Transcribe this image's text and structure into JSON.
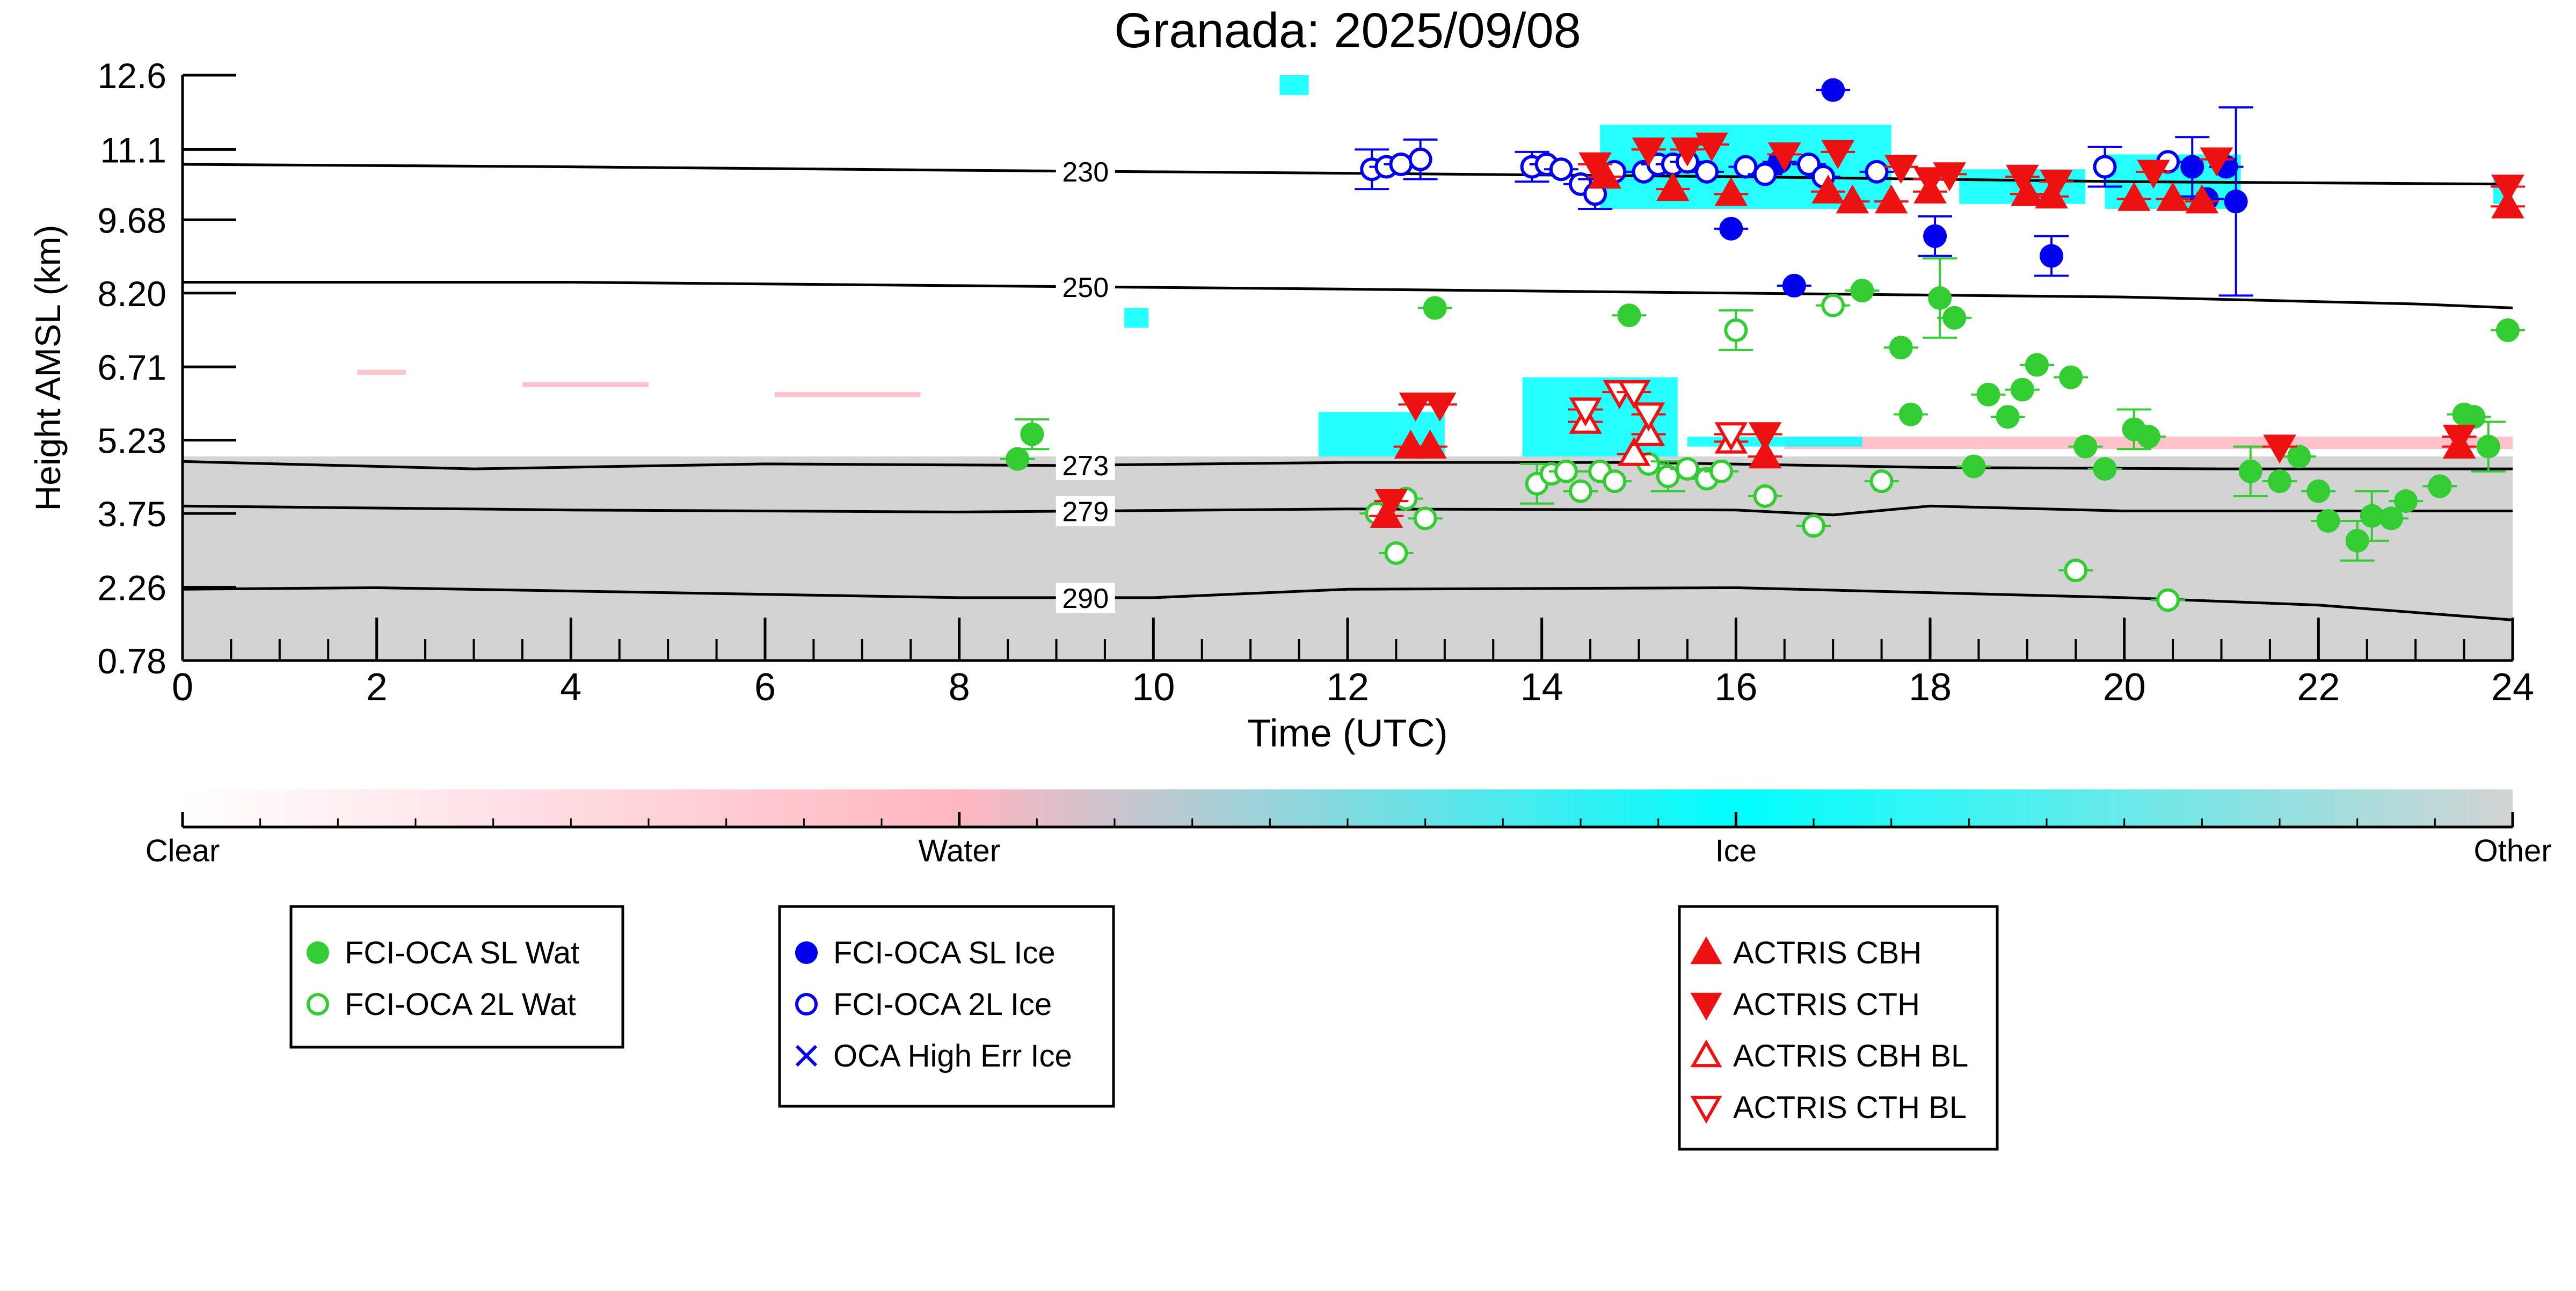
{
  "chart_data": {
    "type": "scatter",
    "title": "Granada: 2025/09/08",
    "xlabel": "Time (UTC)",
    "ylabel": "Height AMSL (km)",
    "xlim": [
      0,
      24
    ],
    "ylim": [
      0.78,
      12.6
    ],
    "x_ticks": [
      "0",
      "2",
      "4",
      "6",
      "8",
      "10",
      "12",
      "14",
      "16",
      "18",
      "20",
      "22",
      "24"
    ],
    "y_ticks": [
      "0.78",
      "2.26",
      "3.75",
      "5.23",
      "6.71",
      "8.20",
      "9.68",
      "11.1",
      "12.6"
    ],
    "isotherms": [
      {
        "label": "230",
        "x": [
          0,
          4,
          8,
          12,
          16,
          20,
          24
        ],
        "y": [
          10.8,
          10.75,
          10.68,
          10.62,
          10.55,
          10.45,
          10.4
        ]
      },
      {
        "label": "250",
        "x": [
          0,
          4,
          8,
          12,
          16,
          20,
          23,
          24
        ],
        "y": [
          8.42,
          8.42,
          8.35,
          8.28,
          8.2,
          8.12,
          7.98,
          7.9
        ]
      },
      {
        "label": "273",
        "x": [
          0,
          3,
          6,
          9,
          12,
          15,
          18,
          21,
          24
        ],
        "y": [
          4.8,
          4.65,
          4.75,
          4.72,
          4.78,
          4.78,
          4.68,
          4.65,
          4.65
        ]
      },
      {
        "label": "279",
        "x": [
          0,
          4,
          8,
          12,
          16,
          17,
          18,
          20,
          24
        ],
        "y": [
          3.9,
          3.82,
          3.78,
          3.84,
          3.82,
          3.72,
          3.9,
          3.8,
          3.8
        ]
      },
      {
        "label": "290",
        "x": [
          0,
          2,
          8,
          10,
          12,
          16,
          20,
          22,
          24
        ],
        "y": [
          2.22,
          2.25,
          2.05,
          2.05,
          2.22,
          2.25,
          2.05,
          1.9,
          1.6
        ]
      }
    ],
    "isotherm_label_x": 9.3,
    "background_fields": [
      {
        "class": "Other",
        "x0": 0,
        "x1": 24,
        "y0": 0.78,
        "y1": 4.9
      },
      {
        "class": "Water",
        "x0": 1.8,
        "x1": 2.3,
        "y0": 6.55,
        "y1": 6.65
      },
      {
        "class": "Water",
        "x0": 3.5,
        "x1": 4.8,
        "y0": 6.3,
        "y1": 6.4
      },
      {
        "class": "Water",
        "x0": 6.1,
        "x1": 7.6,
        "y0": 6.1,
        "y1": 6.2
      },
      {
        "class": "Water",
        "x0": 16.5,
        "x1": 24,
        "y0": 5.05,
        "y1": 5.3
      },
      {
        "class": "Ice",
        "x0": 11.3,
        "x1": 11.6,
        "y0": 12.2,
        "y1": 12.6
      },
      {
        "class": "Ice",
        "x0": 9.7,
        "x1": 9.95,
        "y0": 7.5,
        "y1": 7.9
      },
      {
        "class": "Ice",
        "x0": 11.7,
        "x1": 13.0,
        "y0": 4.9,
        "y1": 5.8
      },
      {
        "class": "Ice",
        "x0": 13.8,
        "x1": 15.4,
        "y0": 4.9,
        "y1": 6.5
      },
      {
        "class": "Ice",
        "x0": 15.5,
        "x1": 17.3,
        "y0": 5.1,
        "y1": 5.3
      },
      {
        "class": "Ice",
        "x0": 14.6,
        "x1": 17.6,
        "y0": 9.9,
        "y1": 11.6
      },
      {
        "class": "Ice",
        "x0": 19.8,
        "x1": 21.2,
        "y0": 9.9,
        "y1": 11.0
      },
      {
        "class": "Ice",
        "x0": 23.8,
        "x1": 24,
        "y0": 10.0,
        "y1": 10.5
      },
      {
        "class": "Ice",
        "x0": 18.3,
        "x1": 19.6,
        "y0": 10.0,
        "y1": 10.7
      }
    ],
    "series": [
      {
        "name": "FCI-OCA SL Wat",
        "marker": "circle",
        "filled": true,
        "color": "#33cc33",
        "points": [
          {
            "x": 8.6,
            "y": 4.85
          },
          {
            "x": 8.75,
            "y": 5.35,
            "err": 0.3
          },
          {
            "x": 12.9,
            "y": 7.9
          },
          {
            "x": 14.9,
            "y": 7.75
          },
          {
            "x": 17.3,
            "y": 8.25
          },
          {
            "x": 17.7,
            "y": 7.1
          },
          {
            "x": 17.8,
            "y": 5.75
          },
          {
            "x": 18.1,
            "y": 8.1,
            "err": 0.8
          },
          {
            "x": 18.25,
            "y": 7.7
          },
          {
            "x": 18.45,
            "y": 4.7
          },
          {
            "x": 18.6,
            "y": 6.15
          },
          {
            "x": 18.8,
            "y": 5.7
          },
          {
            "x": 18.95,
            "y": 6.25
          },
          {
            "x": 19.1,
            "y": 6.75
          },
          {
            "x": 19.45,
            "y": 6.5
          },
          {
            "x": 19.6,
            "y": 5.1
          },
          {
            "x": 19.8,
            "y": 4.65
          },
          {
            "x": 20.1,
            "y": 5.45,
            "err": 0.4
          },
          {
            "x": 20.25,
            "y": 5.3
          },
          {
            "x": 21.3,
            "y": 4.6,
            "err": 0.5
          },
          {
            "x": 21.6,
            "y": 4.4
          },
          {
            "x": 21.8,
            "y": 4.9
          },
          {
            "x": 22.0,
            "y": 4.2
          },
          {
            "x": 22.1,
            "y": 3.6
          },
          {
            "x": 22.4,
            "y": 3.2,
            "err": 0.4
          },
          {
            "x": 22.55,
            "y": 3.7,
            "err": 0.5
          },
          {
            "x": 22.75,
            "y": 3.65
          },
          {
            "x": 22.9,
            "y": 4.0
          },
          {
            "x": 23.25,
            "y": 4.3
          },
          {
            "x": 23.5,
            "y": 5.75
          },
          {
            "x": 23.6,
            "y": 5.7
          },
          {
            "x": 23.75,
            "y": 5.1,
            "err": 0.5
          },
          {
            "x": 23.95,
            "y": 7.45
          }
        ]
      },
      {
        "name": "FCI-OCA 2L Wat",
        "marker": "circle",
        "filled": false,
        "color": "#33cc33",
        "points": [
          {
            "x": 12.3,
            "y": 3.75
          },
          {
            "x": 12.5,
            "y": 2.95
          },
          {
            "x": 12.6,
            "y": 4.05
          },
          {
            "x": 12.8,
            "y": 3.65
          },
          {
            "x": 13.95,
            "y": 4.35,
            "err": 0.4
          },
          {
            "x": 14.1,
            "y": 4.55
          },
          {
            "x": 14.25,
            "y": 4.6
          },
          {
            "x": 14.4,
            "y": 4.2
          },
          {
            "x": 14.6,
            "y": 4.6
          },
          {
            "x": 14.75,
            "y": 4.4
          },
          {
            "x": 15.1,
            "y": 4.75
          },
          {
            "x": 15.3,
            "y": 4.5,
            "err": 0.3
          },
          {
            "x": 15.5,
            "y": 4.65
          },
          {
            "x": 15.7,
            "y": 4.45
          },
          {
            "x": 15.85,
            "y": 4.6
          },
          {
            "x": 16.0,
            "y": 7.45,
            "err": 0.4
          },
          {
            "x": 16.3,
            "y": 4.1
          },
          {
            "x": 16.8,
            "y": 3.5
          },
          {
            "x": 17.0,
            "y": 7.95
          },
          {
            "x": 17.5,
            "y": 4.4
          },
          {
            "x": 19.5,
            "y": 2.6
          },
          {
            "x": 20.45,
            "y": 2.0
          }
        ]
      },
      {
        "name": "FCI-OCA SL Ice",
        "marker": "circle",
        "filled": true,
        "color": "#0000ee",
        "points": [
          {
            "x": 15.95,
            "y": 9.5
          },
          {
            "x": 16.45,
            "y": 10.85
          },
          {
            "x": 16.6,
            "y": 8.35
          },
          {
            "x": 17.0,
            "y": 12.3
          },
          {
            "x": 18.05,
            "y": 9.35,
            "err": 0.4
          },
          {
            "x": 19.25,
            "y": 8.95,
            "err": 0.4
          },
          {
            "x": 20.7,
            "y": 10.75,
            "err": 0.6
          },
          {
            "x": 20.85,
            "y": 10.1
          },
          {
            "x": 21.05,
            "y": 10.75
          },
          {
            "x": 21.15,
            "y": 10.05,
            "err": 1.9
          }
        ]
      },
      {
        "name": "FCI-OCA 2L Ice",
        "marker": "circle",
        "filled": false,
        "color": "#0000ee",
        "points": [
          {
            "x": 12.25,
            "y": 10.7,
            "err": 0.4
          },
          {
            "x": 12.4,
            "y": 10.75
          },
          {
            "x": 12.55,
            "y": 10.8
          },
          {
            "x": 12.75,
            "y": 10.9,
            "err": 0.4
          },
          {
            "x": 13.9,
            "y": 10.75,
            "err": 0.3
          },
          {
            "x": 14.05,
            "y": 10.8
          },
          {
            "x": 14.2,
            "y": 10.7
          },
          {
            "x": 14.4,
            "y": 10.4
          },
          {
            "x": 14.55,
            "y": 10.2,
            "err": 0.3
          },
          {
            "x": 14.75,
            "y": 10.65
          },
          {
            "x": 15.05,
            "y": 10.65
          },
          {
            "x": 15.2,
            "y": 10.8
          },
          {
            "x": 15.35,
            "y": 10.8
          },
          {
            "x": 15.5,
            "y": 10.85
          },
          {
            "x": 15.7,
            "y": 10.65
          },
          {
            "x": 16.1,
            "y": 10.75
          },
          {
            "x": 16.3,
            "y": 10.6
          },
          {
            "x": 16.75,
            "y": 10.8
          },
          {
            "x": 16.9,
            "y": 10.55
          },
          {
            "x": 17.45,
            "y": 10.65
          },
          {
            "x": 19.8,
            "y": 10.75,
            "err": 0.4
          },
          {
            "x": 20.45,
            "y": 10.85
          }
        ]
      },
      {
        "name": "OCA High Err Ice",
        "marker": "x",
        "filled": false,
        "color": "#0000ee",
        "points": []
      },
      {
        "name": "ACTRIS CBH",
        "marker": "triangle-up",
        "filled": true,
        "color": "#ee1111",
        "points": [
          {
            "x": 12.4,
            "y": 3.7
          },
          {
            "x": 12.65,
            "y": 5.1
          },
          {
            "x": 12.85,
            "y": 5.1
          },
          {
            "x": 14.65,
            "y": 10.55
          },
          {
            "x": 15.35,
            "y": 10.3
          },
          {
            "x": 15.95,
            "y": 10.2
          },
          {
            "x": 16.3,
            "y": 4.9
          },
          {
            "x": 16.95,
            "y": 10.25
          },
          {
            "x": 17.2,
            "y": 10.05
          },
          {
            "x": 17.6,
            "y": 10.05
          },
          {
            "x": 18.0,
            "y": 10.25
          },
          {
            "x": 19.0,
            "y": 10.2
          },
          {
            "x": 19.25,
            "y": 10.15
          },
          {
            "x": 20.1,
            "y": 10.1
          },
          {
            "x": 20.5,
            "y": 10.1
          },
          {
            "x": 20.8,
            "y": 10.05
          },
          {
            "x": 23.45,
            "y": 5.1
          },
          {
            "x": 23.95,
            "y": 9.95
          }
        ]
      },
      {
        "name": "ACTRIS CTH",
        "marker": "triangle-down",
        "filled": true,
        "color": "#ee1111",
        "points": [
          {
            "x": 12.45,
            "y": 4.0
          },
          {
            "x": 12.7,
            "y": 5.95
          },
          {
            "x": 12.95,
            "y": 5.95
          },
          {
            "x": 14.55,
            "y": 10.8
          },
          {
            "x": 15.1,
            "y": 11.1
          },
          {
            "x": 15.5,
            "y": 11.1
          },
          {
            "x": 15.75,
            "y": 11.2
          },
          {
            "x": 16.3,
            "y": 5.35
          },
          {
            "x": 16.5,
            "y": 11.0
          },
          {
            "x": 17.05,
            "y": 11.05
          },
          {
            "x": 17.7,
            "y": 10.75
          },
          {
            "x": 18.0,
            "y": 10.5
          },
          {
            "x": 18.2,
            "y": 10.6
          },
          {
            "x": 18.95,
            "y": 10.55
          },
          {
            "x": 19.3,
            "y": 10.45
          },
          {
            "x": 20.3,
            "y": 10.65
          },
          {
            "x": 20.95,
            "y": 10.9
          },
          {
            "x": 21.6,
            "y": 5.1
          },
          {
            "x": 23.45,
            "y": 5.3
          },
          {
            "x": 23.95,
            "y": 10.35
          }
        ]
      },
      {
        "name": "ACTRIS CBH BL",
        "marker": "triangle-up",
        "filled": false,
        "color": "#ee1111",
        "points": [
          {
            "x": 14.45,
            "y": 5.6
          },
          {
            "x": 14.95,
            "y": 4.95
          },
          {
            "x": 15.1,
            "y": 5.35
          },
          {
            "x": 15.95,
            "y": 5.2
          }
        ]
      },
      {
        "name": "ACTRIS CTH BL",
        "marker": "triangle-down",
        "filled": false,
        "color": "#ee1111",
        "points": [
          {
            "x": 14.45,
            "y": 5.85
          },
          {
            "x": 14.8,
            "y": 6.2
          },
          {
            "x": 14.95,
            "y": 6.2
          },
          {
            "x": 15.1,
            "y": 5.75
          },
          {
            "x": 15.95,
            "y": 5.35
          }
        ]
      }
    ],
    "colorbar": {
      "labels": [
        "Clear",
        "Water",
        "Ice",
        "Other"
      ],
      "stops": [
        {
          "at": 0,
          "color": "#ffffff"
        },
        {
          "at": 0.333,
          "color": "#ffb6c1"
        },
        {
          "at": 0.667,
          "color": "#00ffff"
        },
        {
          "at": 1,
          "color": "#d3d3d3"
        }
      ]
    },
    "legends": [
      {
        "entries": [
          "FCI-OCA SL Wat",
          "FCI-OCA 2L Wat"
        ]
      },
      {
        "entries": [
          "FCI-OCA SL Ice",
          "FCI-OCA 2L Ice",
          "OCA High Err Ice"
        ]
      },
      {
        "entries": [
          "ACTRIS CBH",
          "ACTRIS CTH",
          "ACTRIS CBH BL",
          "ACTRIS CTH BL"
        ]
      }
    ],
    "colors": {
      "water": "#ffb6c1",
      "ice": "#00ffff",
      "other": "#d3d3d3",
      "isotherm": "#000000"
    }
  }
}
